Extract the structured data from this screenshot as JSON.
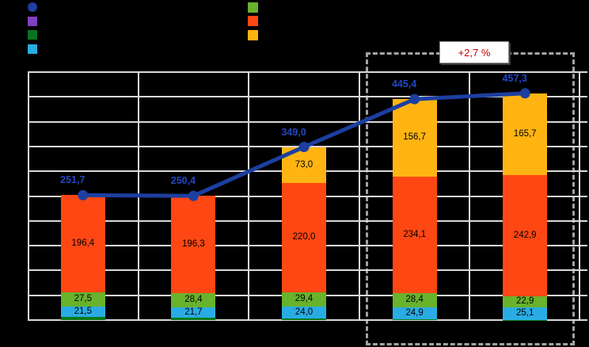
{
  "canvas": {
    "background": "#000000"
  },
  "legend": {
    "left_column": [
      {
        "name": "legend-total-line-marker",
        "shape": "circle",
        "color": "#1E3FA3",
        "label": ""
      },
      {
        "name": "legend-purple-marker",
        "shape": "square",
        "color": "#8040BF",
        "label": ""
      },
      {
        "name": "legend-darkgreen-marker",
        "shape": "square",
        "color": "#0A7321",
        "label": ""
      },
      {
        "name": "legend-cyan-marker",
        "shape": "square",
        "color": "#29ACE3",
        "label": ""
      }
    ],
    "right_column": [
      {
        "name": "legend-lightgreen-marker",
        "shape": "square",
        "color": "#68B22C",
        "label": ""
      },
      {
        "name": "legend-orange-marker",
        "shape": "square",
        "color": "#FF4713",
        "label": ""
      },
      {
        "name": "legend-yellow-marker",
        "shape": "square",
        "color": "#FFB412",
        "label": ""
      }
    ]
  },
  "chart_data": {
    "type": "bar",
    "subtype": "stacked-columns-with-total-line",
    "categories": [
      "",
      "",
      "",
      "",
      ""
    ],
    "series": [
      {
        "name": "darkgreen-strip",
        "color": "#0B7A1A",
        "values": [
          6.3,
          4.0,
          2.6,
          1.3,
          0.7
        ],
        "labels": [
          "",
          "",
          "",
          "",
          ""
        ]
      },
      {
        "name": "cyan",
        "color": "#29ACE3",
        "values": [
          21.5,
          21.7,
          24.0,
          24.9,
          25.1
        ],
        "labels": [
          "21,5",
          "21,7",
          "24,0",
          "24,9",
          "25,1"
        ]
      },
      {
        "name": "lightgreen",
        "color": "#68B22C",
        "values": [
          27.5,
          28.4,
          29.4,
          28.4,
          22.9
        ],
        "labels": [
          "27,5",
          "28,4",
          "29,4",
          "28,4",
          "22,9"
        ]
      },
      {
        "name": "orange",
        "color": "#FF4713",
        "values": [
          196.4,
          196.3,
          220.0,
          234.1,
          242.9
        ],
        "labels": [
          "196,4",
          "196,3",
          "220,0",
          "234,1",
          "242,9"
        ]
      },
      {
        "name": "yellow",
        "color": "#FFB412",
        "values": [
          0,
          0,
          73.0,
          156.7,
          165.7
        ],
        "labels": [
          "",
          "",
          "73,0",
          "156,7",
          "165,7"
        ]
      }
    ],
    "total_line": {
      "name": "total",
      "color": "#1C3FA0",
      "label_color": "#2447C4",
      "values": [
        251.7,
        250.4,
        349.0,
        445.4,
        457.3
      ],
      "labels": [
        "251,7",
        "250,4",
        "349,0",
        "445,4",
        "457,3"
      ]
    },
    "ylim": [
      0,
      500
    ],
    "grid": {
      "rows": 10,
      "cols": 5,
      "color": "#D9D9D9",
      "visible": true
    },
    "highlight": {
      "annotation": "+2,7 %",
      "annotation_color": "#CC0000",
      "bars": [
        4,
        5
      ],
      "border_color": "#A3A3A3"
    }
  }
}
